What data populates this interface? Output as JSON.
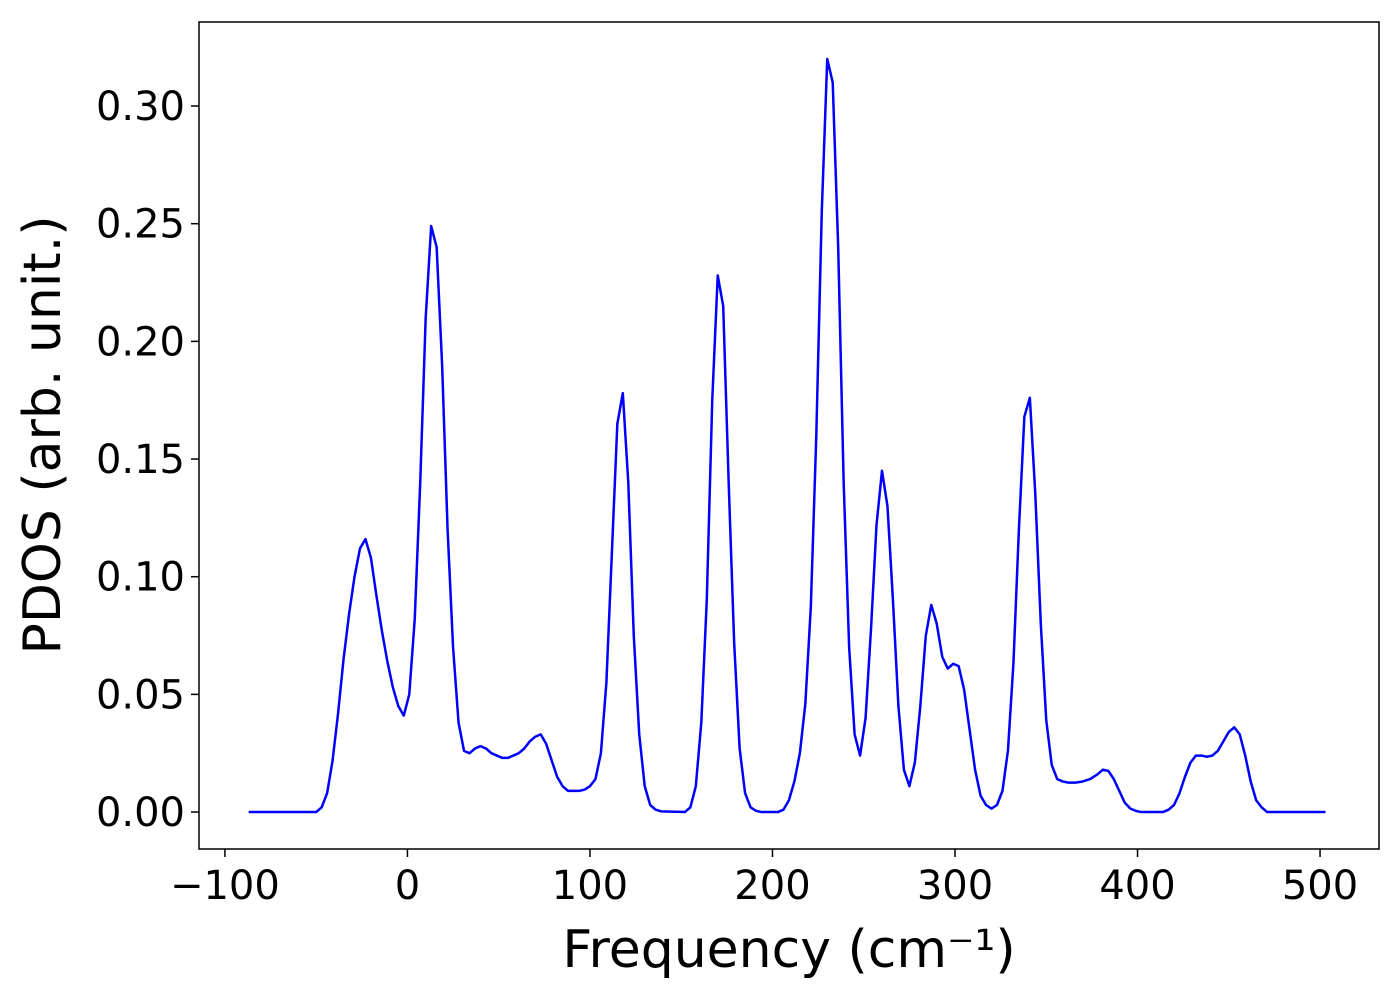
{
  "chart_data": {
    "type": "line",
    "x_label": "Frequency (cm⁻¹)",
    "y_label": "PDOS (arb. unit.)",
    "xlim": [
      -114.2,
      532.3
    ],
    "ylim": [
      -0.0157,
      0.3357
    ],
    "xticks": [
      {
        "value": -100,
        "label": "−100"
      },
      0,
      100,
      200,
      300,
      400,
      500
    ],
    "yticks": [
      {
        "value": 0,
        "label": "0.00"
      },
      {
        "value": 0.05,
        "label": "0.05"
      },
      {
        "value": 0.1,
        "label": "0.10"
      },
      {
        "value": 0.15,
        "label": "0.15"
      },
      {
        "value": 0.2,
        "label": "0.20"
      },
      {
        "value": 0.25,
        "label": "0.25"
      },
      {
        "value": 0.3,
        "label": "0.30"
      }
    ],
    "grid": false,
    "series": [
      {
        "color": "#0000ff",
        "x": [
          -87,
          -50,
          -47,
          -44,
          -41,
          -38,
          -35,
          -32,
          -29,
          -26,
          -23,
          -20,
          -17,
          -14,
          -11,
          -8,
          -5,
          -2,
          1,
          4,
          7,
          10,
          13,
          16,
          19,
          22,
          25,
          28,
          31,
          34,
          37,
          40,
          43,
          46,
          49,
          52,
          55,
          58,
          61,
          64,
          67,
          70,
          73,
          76,
          79,
          82,
          85,
          88,
          91,
          94,
          97,
          100,
          103,
          106,
          109,
          112,
          115,
          118,
          121,
          124,
          127,
          130,
          133,
          136,
          139,
          152,
          155,
          158,
          161,
          164,
          167,
          170,
          173,
          176,
          179,
          182,
          185,
          188,
          191,
          194,
          203,
          206,
          209,
          212,
          215,
          218,
          221,
          224,
          227,
          230,
          233,
          236,
          239,
          242,
          245,
          248,
          251,
          254,
          257,
          260,
          263,
          266,
          269,
          272,
          275,
          278,
          281,
          284,
          287,
          290,
          293,
          296,
          299,
          302,
          305,
          308,
          311,
          314,
          317,
          320,
          323,
          326,
          329,
          332,
          335,
          338,
          341,
          344,
          347,
          350,
          353,
          356,
          359,
          362,
          366,
          370,
          374,
          378,
          381,
          384,
          387,
          390,
          393,
          396,
          399,
          402,
          414,
          417,
          420,
          423,
          426,
          429,
          432,
          435,
          438,
          441,
          444,
          447,
          450,
          453,
          456,
          459,
          462,
          465,
          468,
          471,
          503
        ],
        "values": [
          0,
          0,
          0.002,
          0.008,
          0.022,
          0.042,
          0.065,
          0.084,
          0.1,
          0.112,
          0.116,
          0.108,
          0.092,
          0.077,
          0.064,
          0.053,
          0.045,
          0.041,
          0.05,
          0.082,
          0.14,
          0.21,
          0.249,
          0.24,
          0.19,
          0.12,
          0.07,
          0.038,
          0.026,
          0.025,
          0.027,
          0.028,
          0.027,
          0.025,
          0.024,
          0.023,
          0.023,
          0.024,
          0.025,
          0.027,
          0.03,
          0.032,
          0.033,
          0.029,
          0.022,
          0.015,
          0.011,
          0.009,
          0.009,
          0.009,
          0.0095,
          0.011,
          0.014,
          0.025,
          0.055,
          0.11,
          0.165,
          0.178,
          0.14,
          0.075,
          0.033,
          0.011,
          0.003,
          0.001,
          0.0003,
          0,
          0.002,
          0.011,
          0.038,
          0.09,
          0.175,
          0.228,
          0.215,
          0.14,
          0.072,
          0.027,
          0.008,
          0.002,
          0.0005,
          0,
          0,
          0.001,
          0.005,
          0.013,
          0.025,
          0.046,
          0.087,
          0.16,
          0.255,
          0.32,
          0.31,
          0.24,
          0.14,
          0.07,
          0.033,
          0.024,
          0.04,
          0.078,
          0.122,
          0.145,
          0.13,
          0.09,
          0.045,
          0.018,
          0.011,
          0.021,
          0.045,
          0.075,
          0.088,
          0.08,
          0.066,
          0.061,
          0.063,
          0.062,
          0.052,
          0.035,
          0.018,
          0.007,
          0.003,
          0.0015,
          0.003,
          0.009,
          0.026,
          0.063,
          0.12,
          0.168,
          0.176,
          0.135,
          0.08,
          0.039,
          0.02,
          0.014,
          0.013,
          0.0125,
          0.0125,
          0.013,
          0.014,
          0.016,
          0.018,
          0.0175,
          0.014,
          0.009,
          0.004,
          0.0015,
          0.0005,
          0,
          0,
          0.001,
          0.003,
          0.008,
          0.015,
          0.021,
          0.024,
          0.024,
          0.0235,
          0.024,
          0.026,
          0.03,
          0.034,
          0.036,
          0.033,
          0.024,
          0.013,
          0.005,
          0.002,
          0,
          0
        ]
      }
    ]
  }
}
